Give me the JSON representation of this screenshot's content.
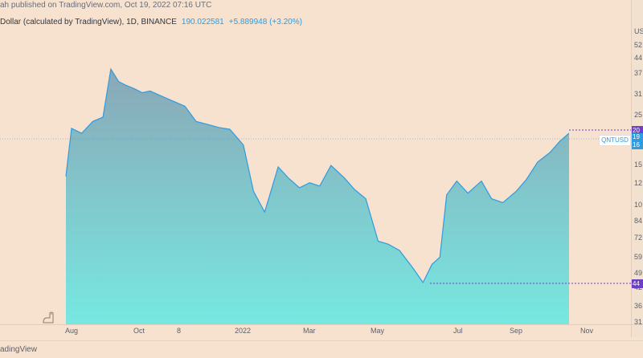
{
  "published_line": "ah published on TradingView.com, Oct 19, 2022 07:16 UTC",
  "symbol_line": "Dollar (calculated by TradingView), 1D, BINANCE",
  "last_price": "190.022581",
  "change": "+5.889948 (+3.20%)",
  "symbol_label": "QNTUSD",
  "footer_text": "adingView",
  "x_ticks": [
    "Aug",
    "Oct",
    "8",
    "2022",
    "Mar",
    "May",
    "Jul",
    "Sep",
    "Nov"
  ],
  "y_ticks": [
    "US",
    "52",
    "44",
    "37",
    "31",
    "25",
    "15",
    "12",
    "10",
    "84",
    "72",
    "59",
    "49",
    "42",
    "36",
    "31"
  ],
  "badges": {
    "high": "20",
    "current_a": "19",
    "current_b": "16",
    "low": "44"
  },
  "colors": {
    "line": "#2f9be0",
    "area_top": "#8aa7b6",
    "area_bottom": "#77e8e1",
    "purple": "#6d3fc8",
    "background": "#f6e2cf"
  },
  "icon": "tradingview-logo-icon",
  "chart_data": {
    "type": "area",
    "x": [
      "2021-07-27",
      "2021-08-01",
      "2021-08-10",
      "2021-08-20",
      "2021-08-29",
      "2021-09-05",
      "2021-09-12",
      "2021-09-19",
      "2021-09-26",
      "2021-10-03",
      "2021-10-10",
      "2021-10-20",
      "2021-10-31",
      "2021-11-10",
      "2021-11-20",
      "2021-12-01",
      "2021-12-10",
      "2021-12-20",
      "2022-01-01",
      "2022-01-10",
      "2022-01-20",
      "2022-02-01",
      "2022-02-10",
      "2022-02-20",
      "2022-03-01",
      "2022-03-10",
      "2022-03-20",
      "2022-04-01",
      "2022-04-10",
      "2022-04-20",
      "2022-05-01",
      "2022-05-10",
      "2022-05-20",
      "2022-06-01",
      "2022-06-10",
      "2022-06-18",
      "2022-06-25",
      "2022-07-01",
      "2022-07-10",
      "2022-07-20",
      "2022-08-01",
      "2022-08-10",
      "2022-08-20",
      "2022-09-01",
      "2022-09-10",
      "2022-09-20",
      "2022-10-01",
      "2022-10-10",
      "2022-10-18"
    ],
    "series": [
      {
        "values": [
          130,
          210,
          200,
          225,
          235,
          380,
          335,
          322,
          312,
          300,
          305,
          290,
          275,
          262,
          225,
          218,
          212,
          208,
          178,
          112,
          91,
          143,
          128,
          116,
          122,
          118,
          145,
          128,
          114,
          104,
          68,
          66,
          62,
          52,
          45,
          54,
          58,
          108,
          124,
          110,
          124,
          104,
          100,
          112,
          126,
          150,
          165,
          185,
          200
        ]
      }
    ],
    "y_scale": "log"
  }
}
